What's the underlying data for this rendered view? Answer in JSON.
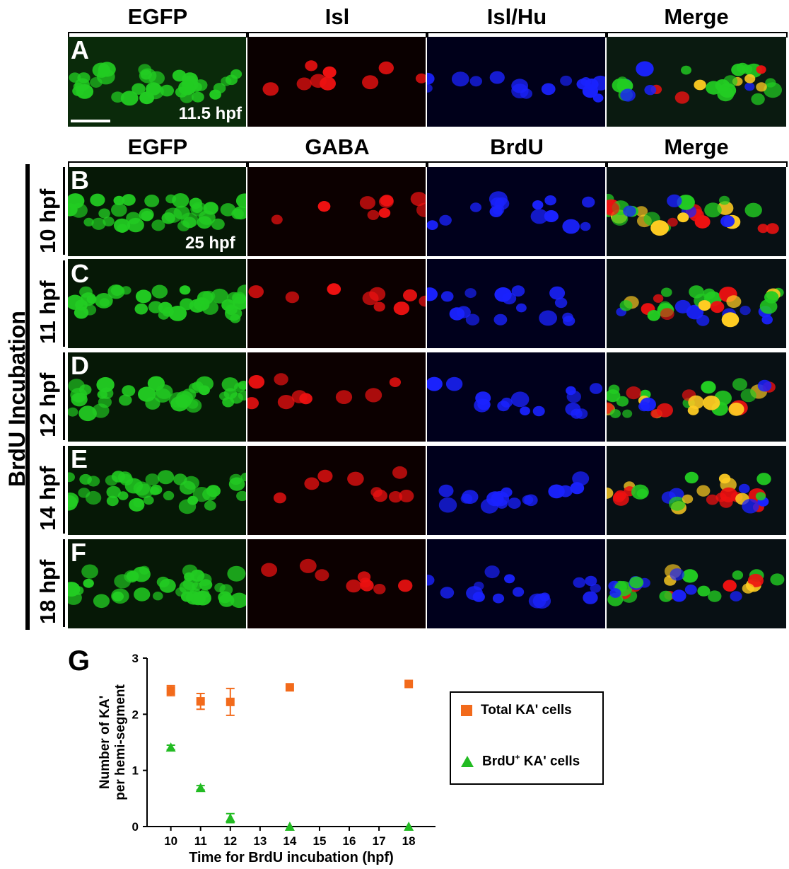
{
  "figure": {
    "row_a_headers": [
      "EGFP",
      "Isl",
      "Isl/Hu",
      "Merge"
    ],
    "row_b_headers": [
      "EGFP",
      "GABA",
      "BrdU",
      "Merge"
    ],
    "panel_letters": [
      "A",
      "B",
      "C",
      "D",
      "E",
      "F"
    ],
    "panel_a_stage": "11.5 hpf",
    "panel_b_stage": "25 hpf",
    "side_label": "BrdU Incubation",
    "row_labels": [
      "10 hpf",
      "11 hpf",
      "12 hpf",
      "14 hpf",
      "18 hpf"
    ],
    "graph_letter": "G"
  },
  "colors": {
    "egfp": "#22cc22",
    "red": "#ee1111",
    "blue": "#1a22ff",
    "orange": "#f26a1b",
    "green_marker": "#22bb22"
  },
  "chart_data": {
    "type": "scatter",
    "title": "",
    "xlabel": "Time for BrdU incubation (hpf)",
    "ylabel_line1": "Number of KA'",
    "ylabel_line2": "per hemi-segment",
    "x_ticks": [
      10,
      11,
      12,
      13,
      14,
      15,
      16,
      17,
      18
    ],
    "y_ticks": [
      0,
      1,
      2,
      3
    ],
    "xlim": [
      9.2,
      18.9
    ],
    "ylim": [
      0,
      3
    ],
    "legend_position": "right",
    "series": [
      {
        "name": "Total KA' cells",
        "marker": "square",
        "color": "#f26a1b",
        "points": [
          {
            "x": 10,
            "y": 2.42,
            "err": 0.09
          },
          {
            "x": 11,
            "y": 2.23,
            "err": 0.14
          },
          {
            "x": 12,
            "y": 2.22,
            "err": 0.24
          },
          {
            "x": 14,
            "y": 2.48,
            "err": 0
          },
          {
            "x": 18,
            "y": 2.54,
            "err": 0
          }
        ]
      },
      {
        "name": "BrdU+ KA' cells",
        "legend_prefix": "BrdU",
        "legend_superscript": "+",
        "legend_suffix": " KA' cells",
        "marker": "triangle",
        "color": "#22bb22",
        "points": [
          {
            "x": 10,
            "y": 1.41,
            "err": 0.04
          },
          {
            "x": 11,
            "y": 0.69,
            "err": 0.04
          },
          {
            "x": 12,
            "y": 0.15,
            "err": 0.08
          },
          {
            "x": 14,
            "y": 0.0,
            "err": 0
          },
          {
            "x": 18,
            "y": 0.0,
            "err": 0
          }
        ]
      }
    ]
  }
}
